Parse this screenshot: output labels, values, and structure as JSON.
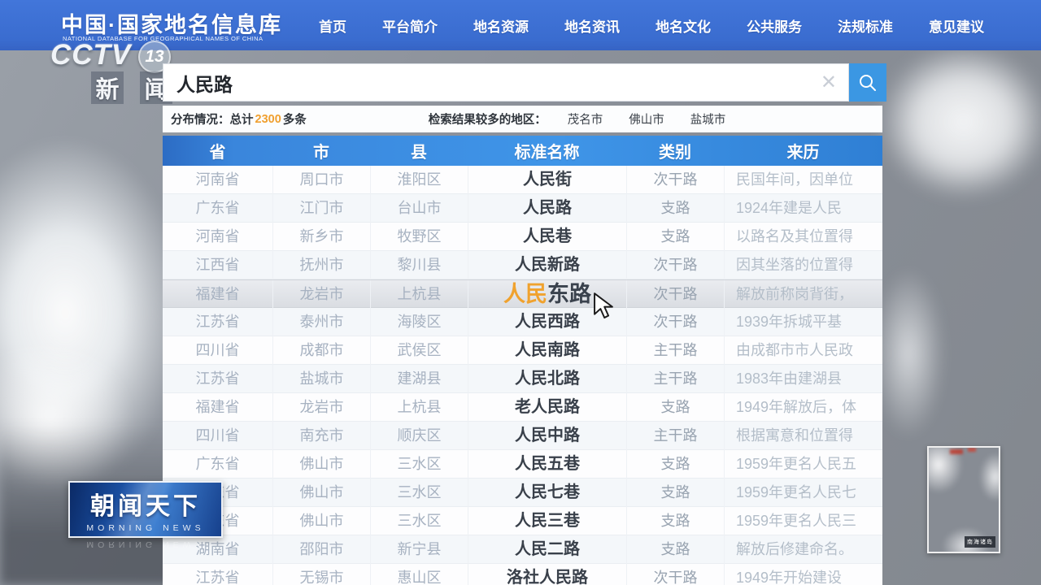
{
  "colors": {
    "header_blue": "#3a6ccf",
    "table_header_blue": "#3f95e8",
    "search_button_blue": "#3b97e3",
    "count_orange": "#f0a030",
    "match_orange": "#f0a22e"
  },
  "channel": {
    "wordmark": "CCTV",
    "number": "13",
    "name_chars": [
      "新",
      "闻"
    ],
    "program_badge": {
      "title": "朝闻天下",
      "subtitle": "MORNING NEWS"
    }
  },
  "site_header": {
    "logo_title": "中国·国家地名信息库",
    "logo_subtitle": "NATIONAL DATABASE FOR GEOGRAPHICAL NAMES OF CHINA",
    "nav_items": [
      "首页",
      "平台简介",
      "地名资源",
      "地名资讯",
      "地名文化",
      "公共服务",
      "法规标准",
      "意见建议"
    ]
  },
  "search": {
    "query": "人民路",
    "clear_icon": "✕"
  },
  "summary_bar": {
    "distribution_label": "分布情况：总计",
    "count": "2300",
    "count_suffix": "多条",
    "regions_label": "检索结果较多的地区：",
    "regions": [
      "茂名市",
      "佛山市",
      "盐城市"
    ]
  },
  "table": {
    "headers": [
      "省",
      "市",
      "县",
      "标准名称",
      "类别",
      "来历"
    ],
    "rows": [
      {
        "province": "河南省",
        "city": "周口市",
        "county": "淮阳区",
        "name": "人民街",
        "category": "次干路",
        "origin": "民国年间，因单位"
      },
      {
        "province": "广东省",
        "city": "江门市",
        "county": "台山市",
        "name": "人民路",
        "category": "支路",
        "origin": "1924年建是人民"
      },
      {
        "province": "河南省",
        "city": "新乡市",
        "county": "牧野区",
        "name": "人民巷",
        "category": "支路",
        "origin": "以路名及其位置得"
      },
      {
        "province": "江西省",
        "city": "抚州市",
        "county": "黎川县",
        "name": "人民新路",
        "category": "次干路",
        "origin": "因其坐落的位置得"
      },
      {
        "province": "福建省",
        "city": "龙岩市",
        "county": "上杭县",
        "name": "人民东路",
        "name_match": "人民",
        "name_rest": "东路",
        "category": "次干路",
        "origin": "解放前称岗背街，",
        "highlighted": true
      },
      {
        "province": "江苏省",
        "city": "泰州市",
        "county": "海陵区",
        "name": "人民西路",
        "category": "次干路",
        "origin": "1939年拆城平基"
      },
      {
        "province": "四川省",
        "city": "成都市",
        "county": "武侯区",
        "name": "人民南路",
        "category": "主干路",
        "origin": "由成都市市人民政"
      },
      {
        "province": "江苏省",
        "city": "盐城市",
        "county": "建湖县",
        "name": "人民北路",
        "category": "主干路",
        "origin": "1983年由建湖县"
      },
      {
        "province": "福建省",
        "city": "龙岩市",
        "county": "上杭县",
        "name": "老人民路",
        "category": "支路",
        "origin": "1949年解放后，体"
      },
      {
        "province": "四川省",
        "city": "南充市",
        "county": "顺庆区",
        "name": "人民中路",
        "category": "主干路",
        "origin": "根据寓意和位置得"
      },
      {
        "province": "广东省",
        "city": "佛山市",
        "county": "三水区",
        "name": "人民五巷",
        "category": "支路",
        "origin": "1959年更名人民五"
      },
      {
        "province": "广东省",
        "city": "佛山市",
        "county": "三水区",
        "name": "人民七巷",
        "category": "支路",
        "origin": "1959年更名人民七"
      },
      {
        "province": "广东省",
        "city": "佛山市",
        "county": "三水区",
        "name": "人民三巷",
        "category": "支路",
        "origin": "1959年更名人民三"
      },
      {
        "province": "湖南省",
        "city": "邵阳市",
        "county": "新宁县",
        "name": "人民二路",
        "category": "支路",
        "origin": "解放后修建命名。"
      },
      {
        "province": "江苏省",
        "city": "无锡市",
        "county": "惠山区",
        "name": "洛社人民路",
        "category": "次干路",
        "origin": "1949年开始建设"
      }
    ]
  },
  "inset_map": {
    "label": "南海诸岛"
  }
}
